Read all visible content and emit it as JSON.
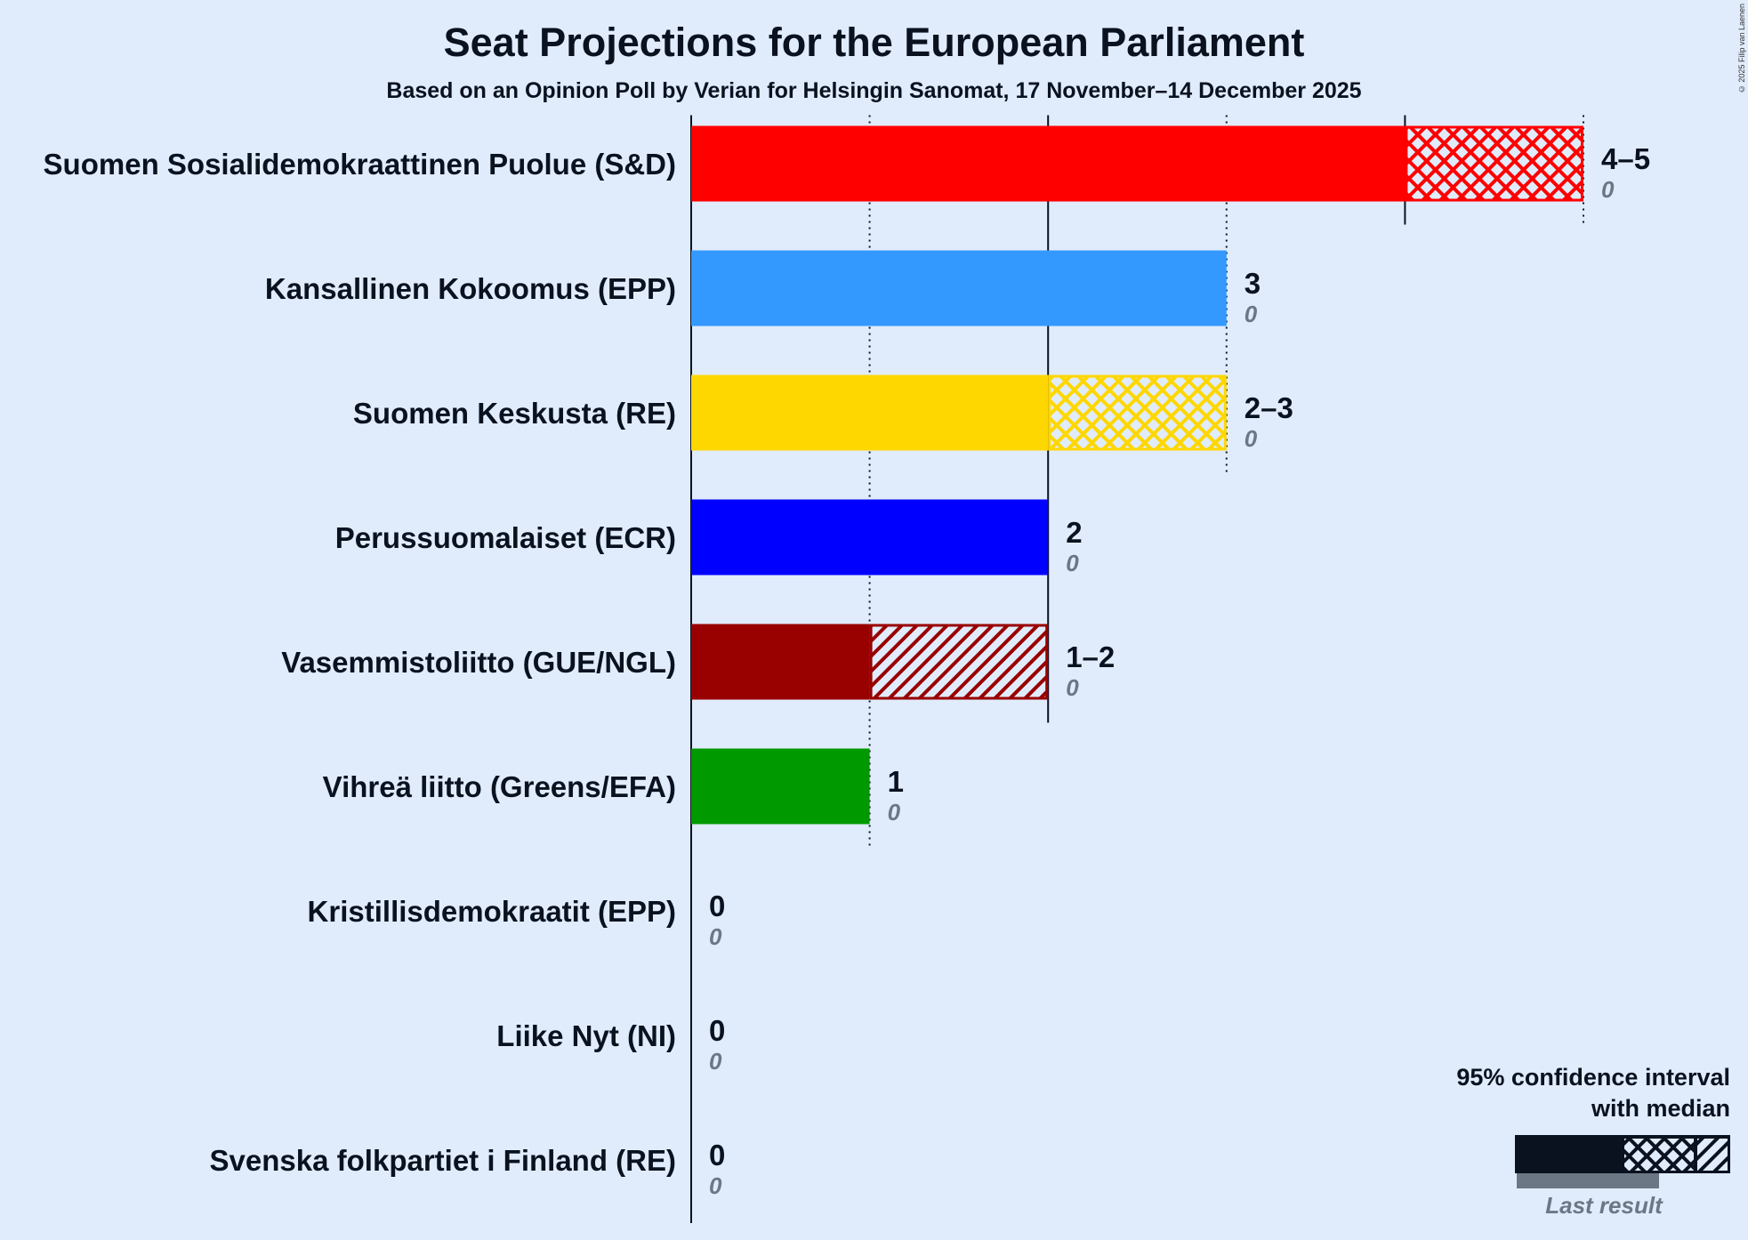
{
  "chart_data": {
    "type": "bar",
    "orientation": "horizontal",
    "title": "Seat Projections for the European Parliament",
    "subtitle": "Based on an Opinion Poll by Verian for Helsingin Sanomat, 17 November–14 December 2025",
    "copyright": "© 2025 Filip van Laenen",
    "xlim": [
      0,
      5
    ],
    "parties": [
      {
        "name": "Suomen Sosialidemokraattinen Puolue (S&D)",
        "low": 4,
        "median": 5,
        "high": 5,
        "label": "4–5",
        "last": 0,
        "last_label": "0",
        "color": "#ff0000"
      },
      {
        "name": "Kansallinen Kokoomus (EPP)",
        "low": 3,
        "median": 3,
        "high": 3,
        "label": "3",
        "last": 0,
        "last_label": "0",
        "color": "#3399ff"
      },
      {
        "name": "Suomen Keskusta (RE)",
        "low": 2,
        "median": 3,
        "high": 3,
        "label": "2–3",
        "last": 0,
        "last_label": "0",
        "color": "#ffd700"
      },
      {
        "name": "Perussuomalaiset (ECR)",
        "low": 2,
        "median": 2,
        "high": 2,
        "label": "2",
        "last": 0,
        "last_label": "0",
        "color": "#0000ff"
      },
      {
        "name": "Vasemmistoliitto (GUE/NGL)",
        "low": 1,
        "median": 1,
        "high": 2,
        "label": "1–2",
        "last": 0,
        "last_label": "0",
        "color": "#990000"
      },
      {
        "name": "Vihreä liitto (Greens/EFA)",
        "low": 1,
        "median": 1,
        "high": 1,
        "label": "1",
        "last": 0,
        "last_label": "0",
        "color": "#009900"
      },
      {
        "name": "Kristillisdemokraatit (EPP)",
        "low": 0,
        "median": 0,
        "high": 0,
        "label": "0",
        "last": 0,
        "last_label": "0",
        "color": "#1f3ab0"
      },
      {
        "name": "Liike Nyt (NI)",
        "low": 0,
        "median": 0,
        "high": 0,
        "label": "0",
        "last": 0,
        "last_label": "0",
        "color": "#5a2b84"
      },
      {
        "name": "Svenska folkpartiet i Finland (RE)",
        "low": 0,
        "median": 0,
        "high": 0,
        "label": "0",
        "last": 0,
        "last_label": "0",
        "color": "#ffdd00"
      }
    ],
    "legend": {
      "line1": "95% confidence interval",
      "line2": "with median",
      "last_result": "Last result",
      "placement": "bottom-right"
    }
  }
}
